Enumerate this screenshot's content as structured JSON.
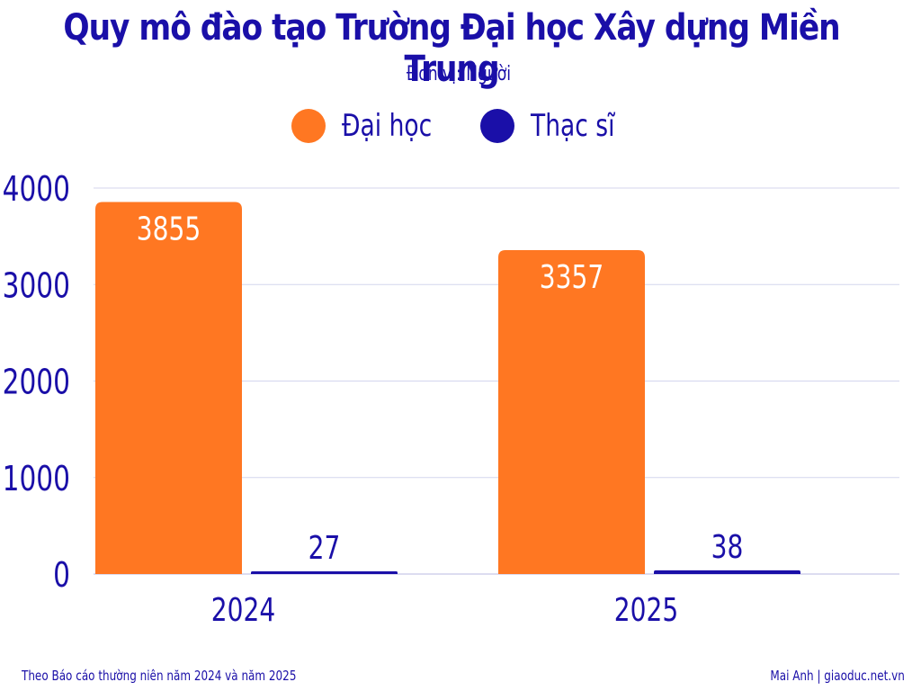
{
  "colors": {
    "dai_hoc": "#ff7722",
    "thac_si": "#1a0fa8",
    "text": "#1a0fa8",
    "grid": "#d4d6ee"
  },
  "chart_data": {
    "type": "bar",
    "title": "Quy mô đào tạo Trường Đại học Xây dựng Miền Trung",
    "subtitle": "Đơn vị: Người",
    "categories": [
      "2024",
      "2025"
    ],
    "series": [
      {
        "name": "Đại học",
        "values": [
          3855,
          3357
        ]
      },
      {
        "name": "Thạc sĩ",
        "values": [
          27,
          38
        ]
      }
    ],
    "ylim": [
      0,
      4000
    ],
    "yticks": [
      0,
      1000,
      2000,
      3000,
      4000
    ],
    "grid": true,
    "legend_position": "top-center"
  },
  "footer": {
    "source": "Theo Báo cáo thường niên năm 2024 và năm 2025",
    "credit": "Mai Anh | giaoduc.net.vn"
  }
}
